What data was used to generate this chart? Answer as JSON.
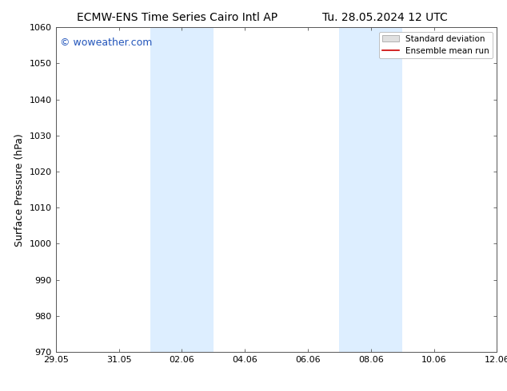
{
  "title_left": "ECMW-ENS Time Series Cairo Intl AP",
  "title_right": "Tu. 28.05.2024 12 UTC",
  "ylabel": "Surface Pressure (hPa)",
  "ylim": [
    970,
    1060
  ],
  "yticks": [
    970,
    980,
    990,
    1000,
    1010,
    1020,
    1030,
    1040,
    1050,
    1060
  ],
  "xtick_labels": [
    "29.05",
    "31.05",
    "02.06",
    "04.06",
    "06.06",
    "08.06",
    "10.06",
    "12.06"
  ],
  "xtick_positions": [
    0,
    2,
    4,
    6,
    8,
    10,
    12,
    14
  ],
  "xlim": [
    0,
    14
  ],
  "watermark": "© woweather.com",
  "watermark_color": "#2255bb",
  "background_color": "#ffffff",
  "shading_color": "#ddeeff",
  "band1_x1": 3.0,
  "band1_x2": 4.0,
  "band1b_x1": 4.0,
  "band1b_x2": 5.0,
  "band2_x1": 9.0,
  "band2_x2": 10.0,
  "band2b_x1": 10.0,
  "band2b_x2": 11.0,
  "legend_label_std": "Standard deviation",
  "legend_label_ens": "Ensemble mean run",
  "legend_color_std": "#cccccc",
  "legend_color_ens": "#cc0000",
  "title_fontsize": 10,
  "tick_fontsize": 8,
  "ylabel_fontsize": 9,
  "watermark_fontsize": 9
}
